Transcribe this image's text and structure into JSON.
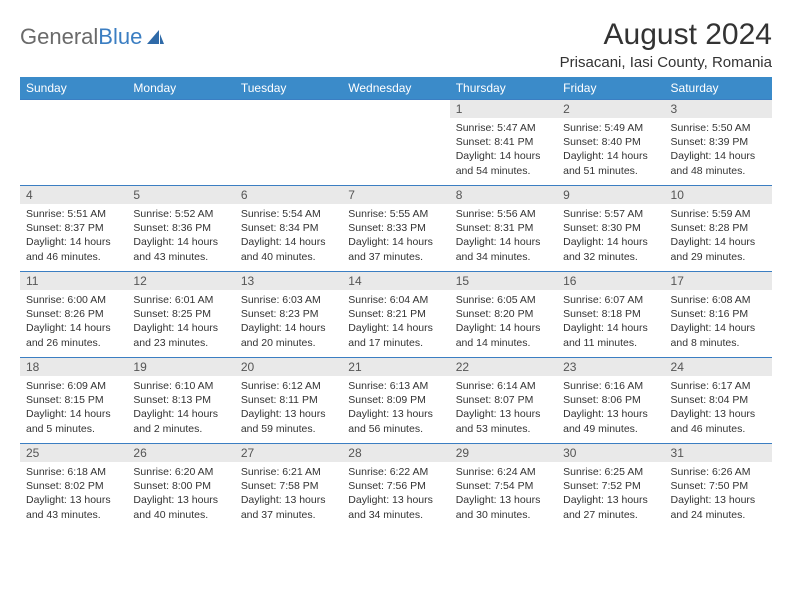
{
  "brand": {
    "part1": "General",
    "part2": "Blue"
  },
  "title": "August 2024",
  "location": "Prisacani, Iasi County, Romania",
  "colors": {
    "header_bg": "#3b8bc9",
    "header_text": "#ffffff",
    "daynum_bg": "#e9e9e9",
    "rule": "#3b7ec2",
    "brand_gray": "#6a6a6a",
    "brand_blue": "#3b7ec2"
  },
  "days_of_week": [
    "Sunday",
    "Monday",
    "Tuesday",
    "Wednesday",
    "Thursday",
    "Friday",
    "Saturday"
  ],
  "weeks": [
    [
      null,
      null,
      null,
      null,
      {
        "n": "1",
        "sunrise": "5:47 AM",
        "sunset": "8:41 PM",
        "daylight": "14 hours and 54 minutes."
      },
      {
        "n": "2",
        "sunrise": "5:49 AM",
        "sunset": "8:40 PM",
        "daylight": "14 hours and 51 minutes."
      },
      {
        "n": "3",
        "sunrise": "5:50 AM",
        "sunset": "8:39 PM",
        "daylight": "14 hours and 48 minutes."
      }
    ],
    [
      {
        "n": "4",
        "sunrise": "5:51 AM",
        "sunset": "8:37 PM",
        "daylight": "14 hours and 46 minutes."
      },
      {
        "n": "5",
        "sunrise": "5:52 AM",
        "sunset": "8:36 PM",
        "daylight": "14 hours and 43 minutes."
      },
      {
        "n": "6",
        "sunrise": "5:54 AM",
        "sunset": "8:34 PM",
        "daylight": "14 hours and 40 minutes."
      },
      {
        "n": "7",
        "sunrise": "5:55 AM",
        "sunset": "8:33 PM",
        "daylight": "14 hours and 37 minutes."
      },
      {
        "n": "8",
        "sunrise": "5:56 AM",
        "sunset": "8:31 PM",
        "daylight": "14 hours and 34 minutes."
      },
      {
        "n": "9",
        "sunrise": "5:57 AM",
        "sunset": "8:30 PM",
        "daylight": "14 hours and 32 minutes."
      },
      {
        "n": "10",
        "sunrise": "5:59 AM",
        "sunset": "8:28 PM",
        "daylight": "14 hours and 29 minutes."
      }
    ],
    [
      {
        "n": "11",
        "sunrise": "6:00 AM",
        "sunset": "8:26 PM",
        "daylight": "14 hours and 26 minutes."
      },
      {
        "n": "12",
        "sunrise": "6:01 AM",
        "sunset": "8:25 PM",
        "daylight": "14 hours and 23 minutes."
      },
      {
        "n": "13",
        "sunrise": "6:03 AM",
        "sunset": "8:23 PM",
        "daylight": "14 hours and 20 minutes."
      },
      {
        "n": "14",
        "sunrise": "6:04 AM",
        "sunset": "8:21 PM",
        "daylight": "14 hours and 17 minutes."
      },
      {
        "n": "15",
        "sunrise": "6:05 AM",
        "sunset": "8:20 PM",
        "daylight": "14 hours and 14 minutes."
      },
      {
        "n": "16",
        "sunrise": "6:07 AM",
        "sunset": "8:18 PM",
        "daylight": "14 hours and 11 minutes."
      },
      {
        "n": "17",
        "sunrise": "6:08 AM",
        "sunset": "8:16 PM",
        "daylight": "14 hours and 8 minutes."
      }
    ],
    [
      {
        "n": "18",
        "sunrise": "6:09 AM",
        "sunset": "8:15 PM",
        "daylight": "14 hours and 5 minutes."
      },
      {
        "n": "19",
        "sunrise": "6:10 AM",
        "sunset": "8:13 PM",
        "daylight": "14 hours and 2 minutes."
      },
      {
        "n": "20",
        "sunrise": "6:12 AM",
        "sunset": "8:11 PM",
        "daylight": "13 hours and 59 minutes."
      },
      {
        "n": "21",
        "sunrise": "6:13 AM",
        "sunset": "8:09 PM",
        "daylight": "13 hours and 56 minutes."
      },
      {
        "n": "22",
        "sunrise": "6:14 AM",
        "sunset": "8:07 PM",
        "daylight": "13 hours and 53 minutes."
      },
      {
        "n": "23",
        "sunrise": "6:16 AM",
        "sunset": "8:06 PM",
        "daylight": "13 hours and 49 minutes."
      },
      {
        "n": "24",
        "sunrise": "6:17 AM",
        "sunset": "8:04 PM",
        "daylight": "13 hours and 46 minutes."
      }
    ],
    [
      {
        "n": "25",
        "sunrise": "6:18 AM",
        "sunset": "8:02 PM",
        "daylight": "13 hours and 43 minutes."
      },
      {
        "n": "26",
        "sunrise": "6:20 AM",
        "sunset": "8:00 PM",
        "daylight": "13 hours and 40 minutes."
      },
      {
        "n": "27",
        "sunrise": "6:21 AM",
        "sunset": "7:58 PM",
        "daylight": "13 hours and 37 minutes."
      },
      {
        "n": "28",
        "sunrise": "6:22 AM",
        "sunset": "7:56 PM",
        "daylight": "13 hours and 34 minutes."
      },
      {
        "n": "29",
        "sunrise": "6:24 AM",
        "sunset": "7:54 PM",
        "daylight": "13 hours and 30 minutes."
      },
      {
        "n": "30",
        "sunrise": "6:25 AM",
        "sunset": "7:52 PM",
        "daylight": "13 hours and 27 minutes."
      },
      {
        "n": "31",
        "sunrise": "6:26 AM",
        "sunset": "7:50 PM",
        "daylight": "13 hours and 24 minutes."
      }
    ]
  ],
  "labels": {
    "sunrise": "Sunrise: ",
    "sunset": "Sunset: ",
    "daylight": "Daylight: "
  }
}
